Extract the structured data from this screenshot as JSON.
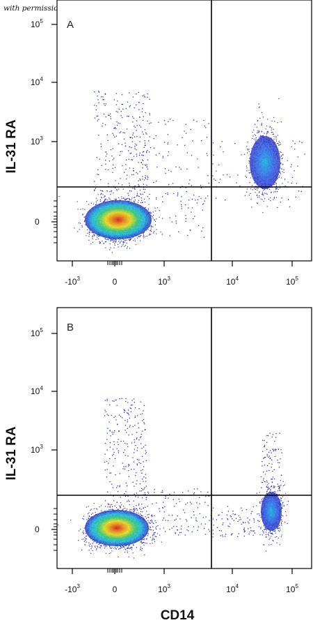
{
  "credit": "with permission from R&D Systems",
  "colors": {
    "axis": "#000000",
    "gate": "#000000",
    "density_low": "#2a2fc0",
    "density_mid": "#22b8e0",
    "density_mid2": "#3fd07a",
    "density_high": "#f3e21a",
    "density_peak": "#e8231a"
  },
  "chart_data": [
    {
      "type": "scatter",
      "subtype": "flow-cytometry-density-dot-plot",
      "panel_label": "A",
      "xlabel": "",
      "ylabel": "IL-31 RA",
      "x_scale": "biexponential",
      "y_scale": "biexponential",
      "x_ticks": [
        {
          "base": "-10",
          "exp": "3"
        },
        {
          "base": "0",
          "exp": ""
        },
        {
          "base": "10",
          "exp": "3"
        },
        {
          "base": "10",
          "exp": "4"
        },
        {
          "base": "10",
          "exp": "5"
        }
      ],
      "y_ticks": [
        {
          "base": "0",
          "exp": ""
        },
        {
          "base": "10",
          "exp": "3"
        },
        {
          "base": "10",
          "exp": "4"
        },
        {
          "base": "10",
          "exp": "5"
        }
      ],
      "gate": {
        "x": 6000,
        "y": 150
      },
      "populations": [
        {
          "name": "CD14-negative cluster",
          "x": 0,
          "y": 0,
          "events": "majority",
          "density": "high"
        },
        {
          "name": "CD14+ IL-31 RA+ cluster",
          "x": 40000,
          "y": 400,
          "events": "minority",
          "density": "medium"
        }
      ]
    },
    {
      "type": "scatter",
      "subtype": "flow-cytometry-density-dot-plot",
      "panel_label": "B",
      "xlabel": "CD14",
      "ylabel": "IL-31 RA",
      "x_scale": "biexponential",
      "y_scale": "biexponential",
      "x_ticks": [
        {
          "base": "-10",
          "exp": "3"
        },
        {
          "base": "0",
          "exp": ""
        },
        {
          "base": "10",
          "exp": "3"
        },
        {
          "base": "10",
          "exp": "4"
        },
        {
          "base": "10",
          "exp": "5"
        }
      ],
      "y_ticks": [
        {
          "base": "0",
          "exp": ""
        },
        {
          "base": "10",
          "exp": "3"
        },
        {
          "base": "10",
          "exp": "4"
        },
        {
          "base": "10",
          "exp": "5"
        }
      ],
      "gate": {
        "x": 6000,
        "y": 150
      },
      "populations": [
        {
          "name": "CD14-negative cluster",
          "x": 0,
          "y": 0,
          "events": "majority",
          "density": "high"
        },
        {
          "name": "CD14+ cluster",
          "x": 50000,
          "y": 30,
          "events": "minority",
          "density": "medium"
        }
      ]
    }
  ]
}
